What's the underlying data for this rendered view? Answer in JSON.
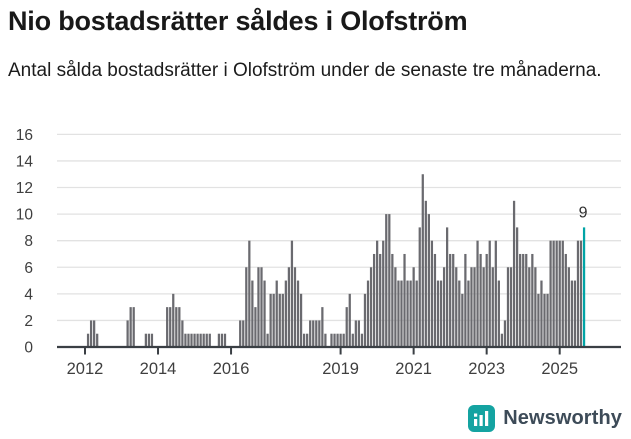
{
  "header": {
    "title": "Nio bostadsrätter såldes i Olofström",
    "subtitle": "Antal sålda bostadsrätter i Olofström under de senaste tre månaderna."
  },
  "footer": {
    "brand": "Newsworthy"
  },
  "colors": {
    "bar": "#6a6a6f",
    "highlight": "#00a4a6",
    "grid": "#e2e2e2",
    "axis": "#3a3f44",
    "tick_text": "#3f3f3f",
    "value_label": "#2e2e2e",
    "brand_square": "#14a3a1",
    "brand_glyph": "#ffffff"
  },
  "chart_data": {
    "type": "bar",
    "title": "Nio bostadsrätter såldes i Olofström",
    "frequency": "monthly",
    "start_month": "2011-04",
    "values": [
      0,
      0,
      0,
      0,
      0,
      0,
      0,
      0,
      0,
      0,
      1,
      2,
      2,
      1,
      0,
      0,
      0,
      0,
      0,
      0,
      0,
      0,
      0,
      2,
      3,
      3,
      0,
      0,
      0,
      1,
      1,
      1,
      0,
      0,
      0,
      0,
      3,
      3,
      4,
      3,
      3,
      2,
      1,
      1,
      1,
      1,
      1,
      1,
      1,
      1,
      1,
      0,
      0,
      1,
      1,
      1,
      0,
      0,
      0,
      0,
      2,
      2,
      6,
      8,
      5,
      3,
      6,
      6,
      5,
      1,
      4,
      4,
      5,
      4,
      4,
      5,
      6,
      8,
      6,
      5,
      4,
      1,
      1,
      2,
      2,
      2,
      2,
      3,
      1,
      0,
      1,
      1,
      1,
      1,
      1,
      3,
      4,
      1,
      2,
      2,
      1,
      4,
      5,
      6,
      7,
      8,
      7,
      8,
      10,
      10,
      7,
      6,
      5,
      5,
      7,
      5,
      5,
      6,
      5,
      9,
      13,
      11,
      10,
      8,
      7,
      5,
      5,
      6,
      9,
      7,
      7,
      6,
      5,
      4,
      7,
      5,
      6,
      6,
      8,
      7,
      6,
      7,
      8,
      6,
      8,
      5,
      1,
      2,
      6,
      6,
      11,
      9,
      7,
      7,
      7,
      6,
      7,
      6,
      4,
      5,
      4,
      4,
      8,
      8,
      8,
      8,
      8,
      7,
      6,
      5,
      5,
      8,
      8,
      9
    ],
    "highlight": {
      "index": 173,
      "value": 9,
      "label": "9"
    },
    "y_ticks": [
      0,
      2,
      4,
      6,
      8,
      10,
      12,
      14,
      16
    ],
    "ylim": [
      0,
      16
    ],
    "x_tick_years": [
      2012,
      2014,
      2016,
      2019,
      2021,
      2023,
      2025
    ],
    "grid": true,
    "legend": false
  }
}
